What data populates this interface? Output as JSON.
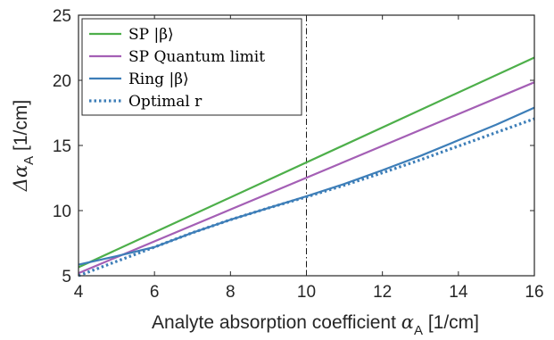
{
  "chart_data": {
    "type": "line",
    "xlabel_prefix": "Analyte absorption coefficient ",
    "xlabel_symbol": "α",
    "xlabel_subscript": "A",
    "xlabel_suffix": " [1/cm]",
    "ylabel_symbol": "Δα",
    "ylabel_subscript": "A",
    "ylabel_suffix": " [1/cm]",
    "xlim": [
      4,
      16
    ],
    "ylim": [
      5,
      25
    ],
    "x_ticks": [
      "4",
      "6",
      "8",
      "10",
      "12",
      "14",
      "16"
    ],
    "y_ticks": [
      "5",
      "10",
      "15",
      "20",
      "25"
    ],
    "grid": false,
    "legend_position": "top-left",
    "vertical_marker": {
      "x": 10,
      "style": "dash-dot",
      "color": "#000000"
    },
    "series": [
      {
        "name": "SP |β⟩",
        "color": "#4daf4a",
        "style": "solid",
        "x": [
          4,
          16
        ],
        "y": [
          5.65,
          21.75
        ]
      },
      {
        "name": "SP Quantum limit",
        "color": "#a45fb5",
        "style": "solid",
        "x": [
          4,
          16
        ],
        "y": [
          5.2,
          19.85
        ]
      },
      {
        "name": "Ring |β⟩",
        "color": "#3d7eb8",
        "style": "solid",
        "x": [
          4,
          5,
          6,
          7,
          8,
          9,
          10,
          11,
          12,
          13,
          14,
          15,
          16
        ],
        "y": [
          5.85,
          6.5,
          7.2,
          8.3,
          9.3,
          10.2,
          11.1,
          12.05,
          13.1,
          14.2,
          15.4,
          16.6,
          17.9
        ]
      },
      {
        "name": "Optimal r",
        "color": "#3d7eb8",
        "style": "dotted",
        "x": [
          4,
          5,
          6,
          7,
          8,
          9,
          10,
          11,
          12,
          13,
          14,
          15,
          16
        ],
        "y": [
          5.0,
          6.1,
          7.2,
          8.3,
          9.3,
          10.2,
          11.05,
          11.95,
          12.9,
          13.9,
          14.95,
          16.0,
          17.05
        ]
      }
    ]
  }
}
